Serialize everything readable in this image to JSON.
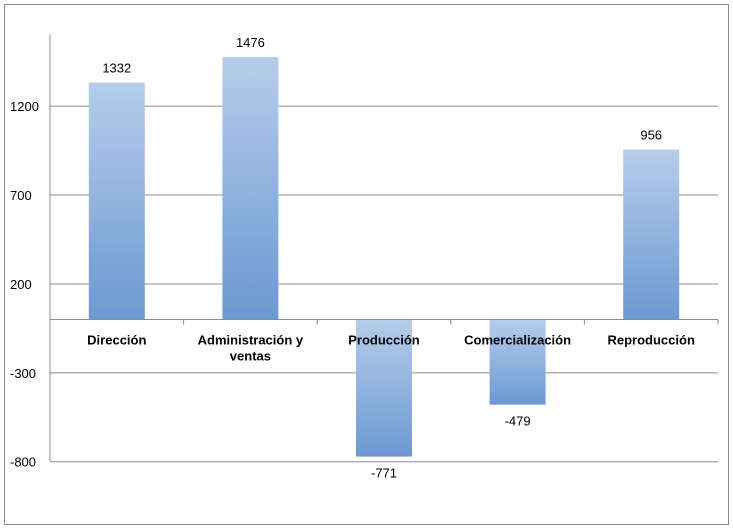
{
  "chart_data": {
    "type": "bar",
    "categories": [
      "Dirección",
      "Administración y ventas",
      "Producción",
      "Comercialización",
      "Reproducción"
    ],
    "category_label_lines": [
      [
        "Dirección"
      ],
      [
        "Administración y",
        "ventas"
      ],
      [
        "Producción"
      ],
      [
        "Comercialización"
      ],
      [
        "Reproducción"
      ]
    ],
    "values": [
      1332,
      1476,
      -771,
      -479,
      956
    ],
    "data_labels": [
      "1332",
      "1476",
      "-771",
      "-479",
      "956"
    ],
    "yticks": [
      -800,
      -300,
      200,
      700,
      1200
    ],
    "ylim": [
      -800,
      1450
    ],
    "grid": true,
    "legend": "none",
    "title": "",
    "xlabel": "",
    "ylabel": "",
    "colors": {
      "bar_top": "#b5cdea",
      "bar_bottom": "#6c98d2",
      "grid": "#8c8c8c",
      "axis": "#8c8c8c"
    }
  }
}
